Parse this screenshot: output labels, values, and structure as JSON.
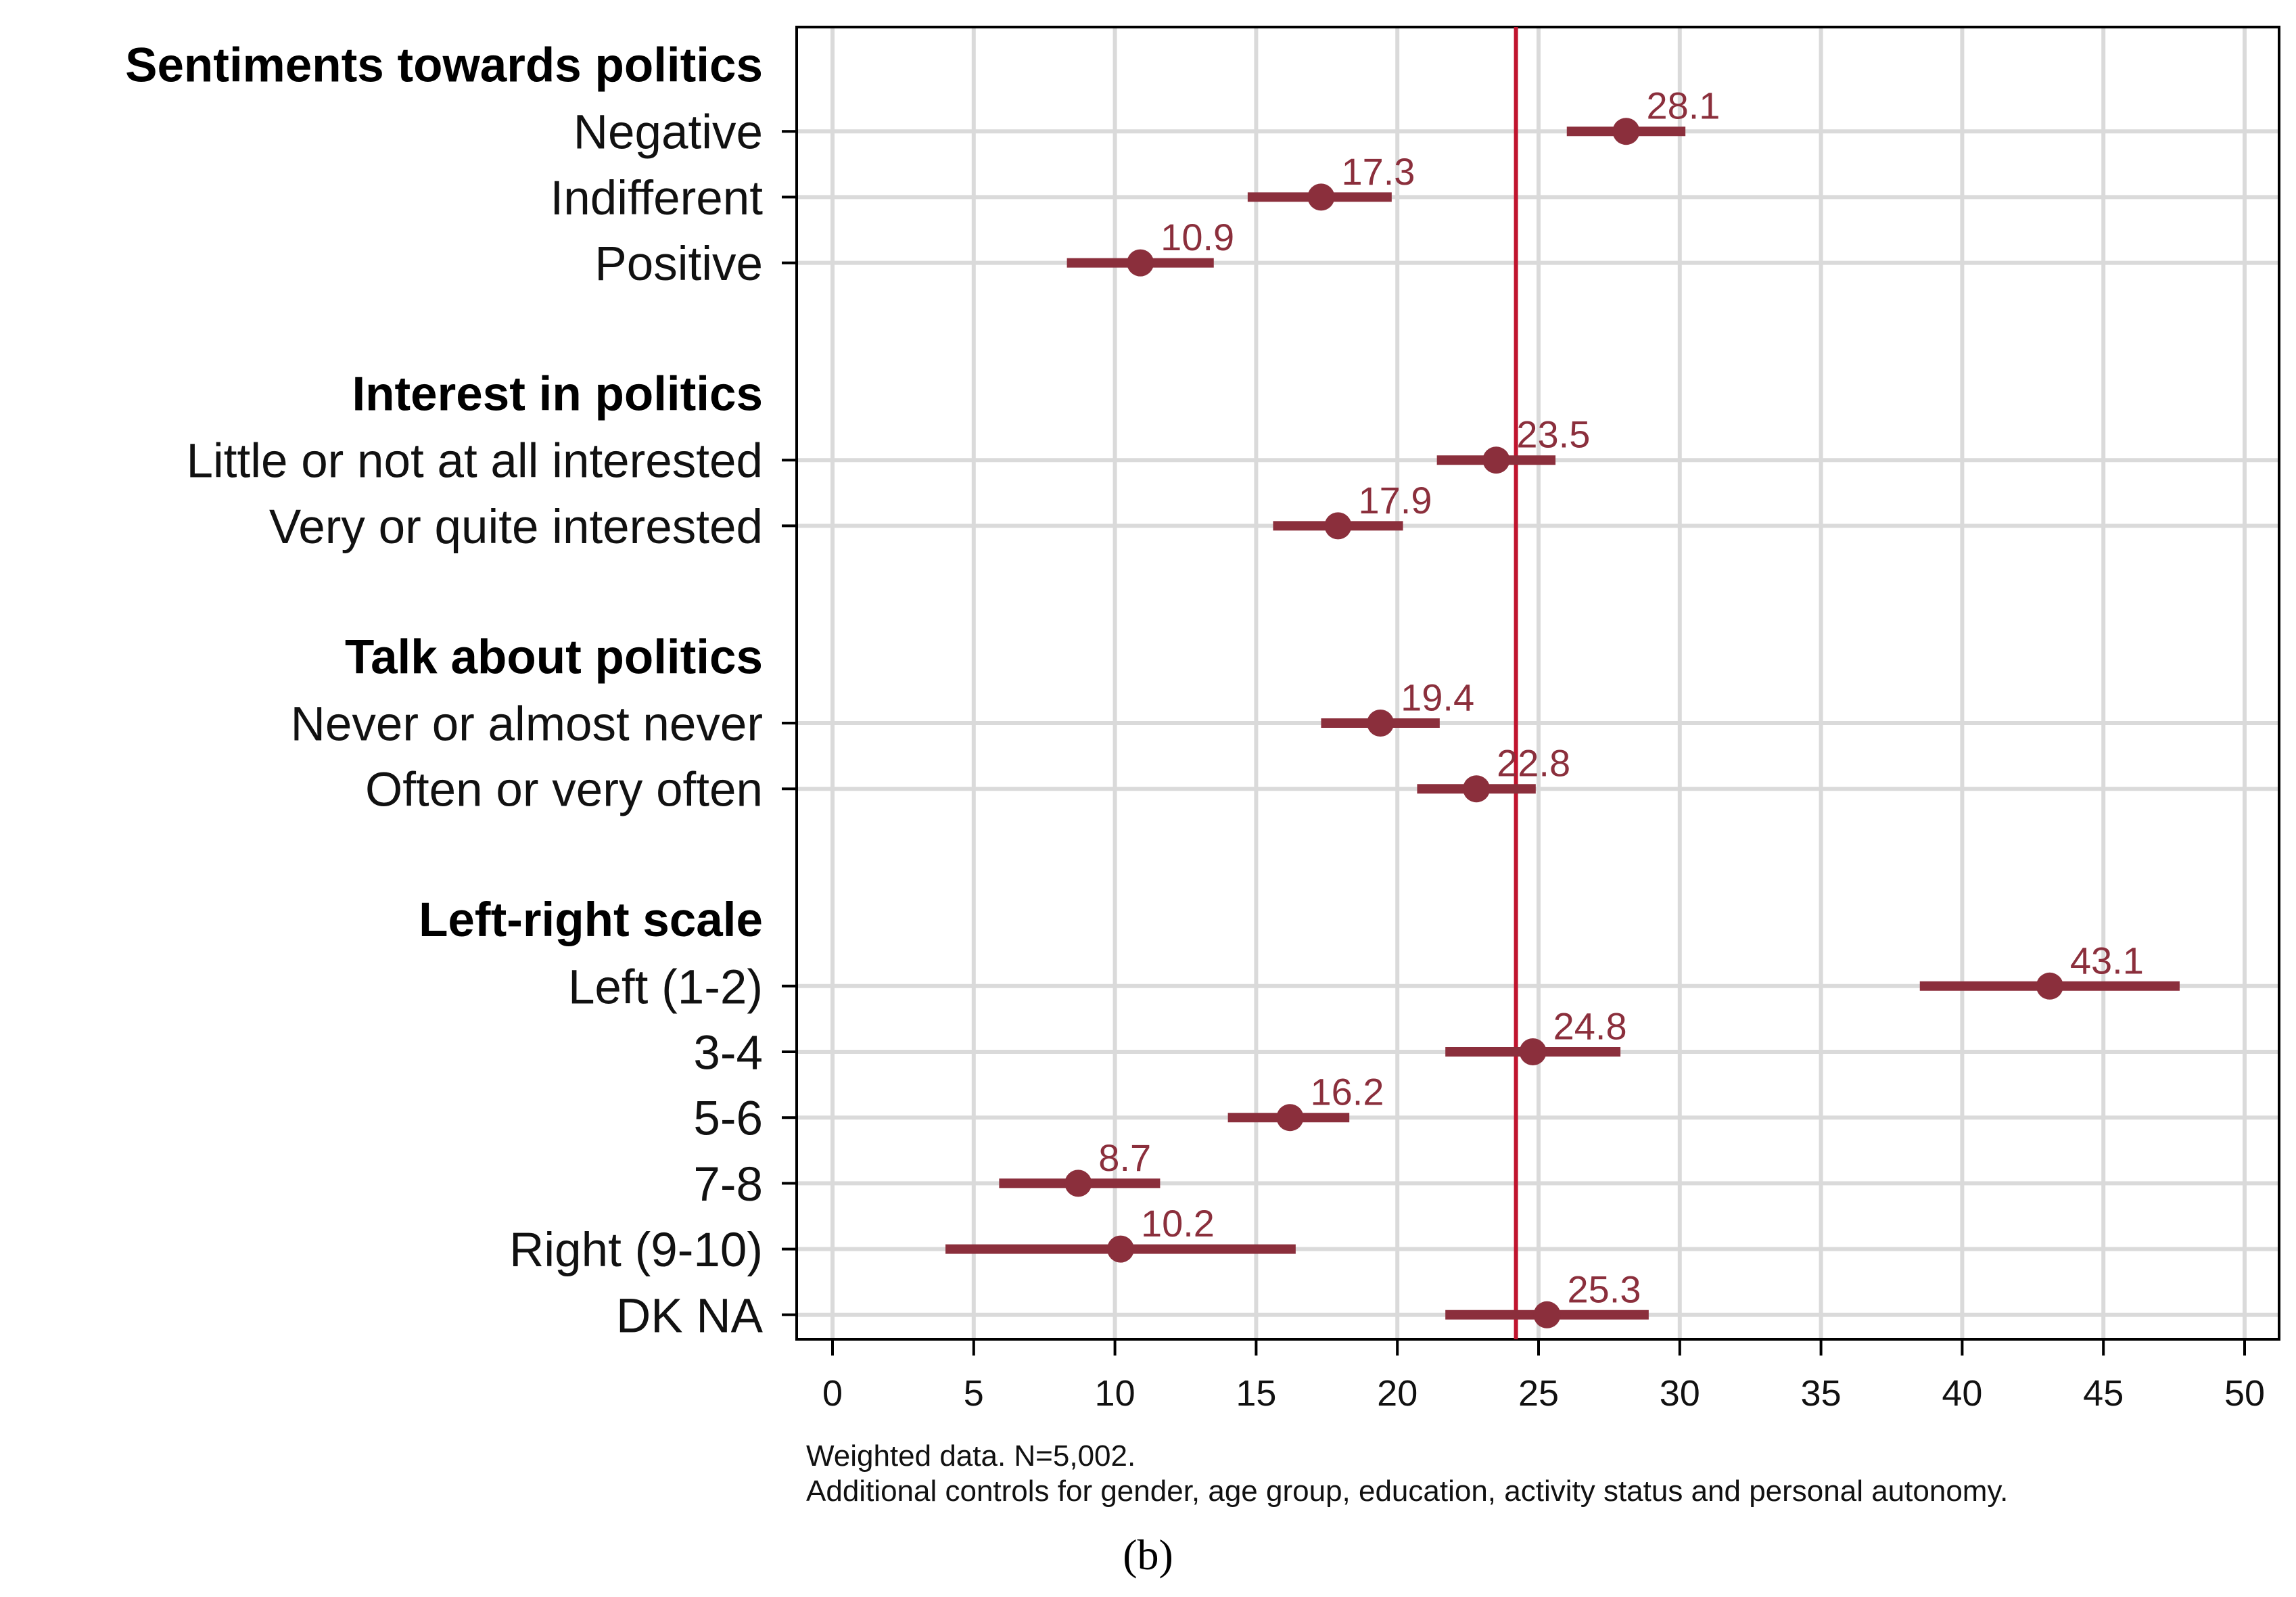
{
  "chart_data": {
    "type": "dot-with-error-bars",
    "xlim": [
      0,
      50
    ],
    "xticks": [
      0,
      5,
      10,
      15,
      20,
      25,
      30,
      35,
      40,
      45,
      50
    ],
    "reference_line": 24.2,
    "grid": true,
    "groups": [
      {
        "title": "Sentiments towards politics",
        "rows": [
          {
            "label": "Negative",
            "value": 28.1,
            "ci_low": 26.0,
            "ci_high": 30.2,
            "value_label": "28.1"
          },
          {
            "label": "Indifferent",
            "value": 17.3,
            "ci_low": 14.7,
            "ci_high": 19.8,
            "value_label": "17.3"
          },
          {
            "label": "Positive",
            "value": 10.9,
            "ci_low": 8.3,
            "ci_high": 13.5,
            "value_label": "10.9"
          }
        ]
      },
      {
        "title": "Interest in politics",
        "rows": [
          {
            "label": "Little or not at all interested",
            "value": 23.5,
            "ci_low": 21.4,
            "ci_high": 25.6,
            "value_label": "23.5"
          },
          {
            "label": "Very or quite interested",
            "value": 17.9,
            "ci_low": 15.6,
            "ci_high": 20.2,
            "value_label": "17.9"
          }
        ]
      },
      {
        "title": "Talk about politics",
        "rows": [
          {
            "label": "Never or almost never",
            "value": 19.4,
            "ci_low": 17.3,
            "ci_high": 21.5,
            "value_label": "19.4"
          },
          {
            "label": "Often or very often",
            "value": 22.8,
            "ci_low": 20.7,
            "ci_high": 24.9,
            "value_label": "22.8"
          }
        ]
      },
      {
        "title": "Left-right scale",
        "rows": [
          {
            "label": "Left (1-2)",
            "value": 43.1,
            "ci_low": 38.5,
            "ci_high": 47.7,
            "value_label": "43.1"
          },
          {
            "label": "3-4",
            "value": 24.8,
            "ci_low": 21.7,
            "ci_high": 27.9,
            "value_label": "24.8"
          },
          {
            "label": "5-6",
            "value": 16.2,
            "ci_low": 14.0,
            "ci_high": 18.3,
            "value_label": "16.2"
          },
          {
            "label": "7-8",
            "value": 8.7,
            "ci_low": 5.9,
            "ci_high": 11.6,
            "value_label": "8.7"
          },
          {
            "label": "Right (9-10)",
            "value": 10.2,
            "ci_low": 4.0,
            "ci_high": 16.4,
            "value_label": "10.2"
          },
          {
            "label": "DK NA",
            "value": 25.3,
            "ci_low": 21.7,
            "ci_high": 28.9,
            "value_label": "25.3"
          }
        ]
      }
    ]
  },
  "notes": {
    "line1": "Weighted data. N=5,002.",
    "line2": "Additional controls for gender, age group, education, activity status and personal autonomy."
  },
  "caption": "(b)",
  "colors": {
    "series": "#8B2F3C",
    "reference": "#C0142E",
    "grid": "#DADADA",
    "axis": "#000000"
  }
}
